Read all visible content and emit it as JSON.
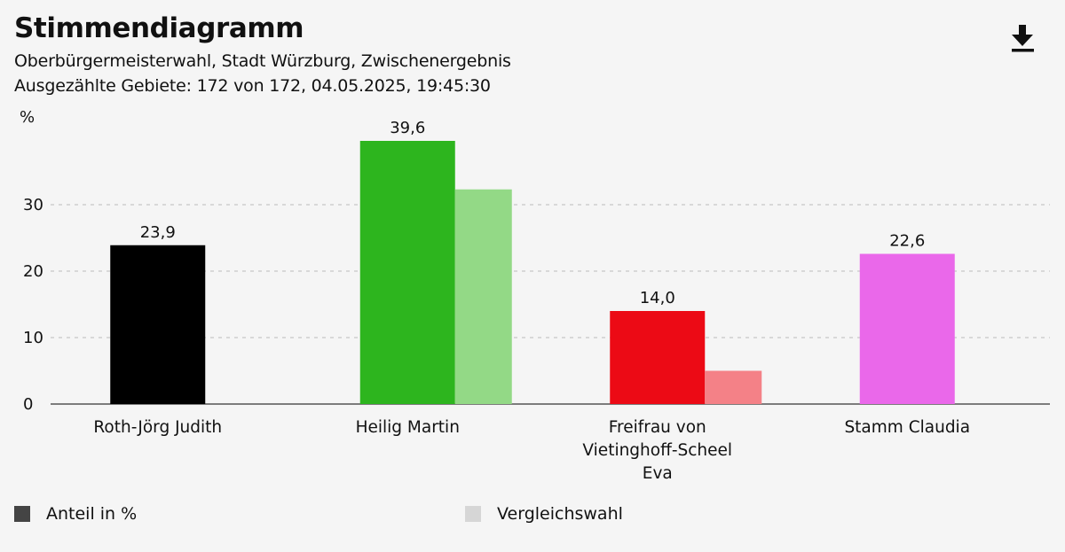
{
  "header": {
    "title": "Stimmendiagramm",
    "subtitle": "Oberbürgermeisterwahl, Stadt Würzburg, Zwischenergebnis",
    "status": "Ausgezählte Gebiete: 172 von 172, 04.05.2025, 19:45:30",
    "download_icon": "download-icon"
  },
  "legend": {
    "items": [
      {
        "label": "Anteil in %",
        "color": "#444444"
      },
      {
        "label": "Vergleichswahl",
        "color": "#d6d6d6"
      }
    ]
  },
  "chart_data": {
    "type": "bar",
    "ylabel": "%",
    "ylim": [
      0,
      42
    ],
    "yticks": [
      0,
      10,
      20,
      30
    ],
    "grid": true,
    "legend_position": "bottom",
    "categories": [
      [
        "Roth-Jörg Judith"
      ],
      [
        "Heilig Martin"
      ],
      [
        "Freifrau von",
        "Vietinghoff-Scheel",
        "Eva"
      ],
      [
        "Stamm Claudia"
      ]
    ],
    "series": [
      {
        "name": "Anteil in %",
        "values": [
          23.9,
          39.6,
          14.0,
          22.6
        ],
        "labels": [
          "23,9",
          "39,6",
          "14,0",
          "22,6"
        ],
        "colors": [
          "#000000",
          "#2db51e",
          "#ec0a15",
          "#ea68ea"
        ]
      },
      {
        "name": "Vergleichswahl",
        "values": [
          null,
          32.3,
          5.0,
          null
        ],
        "colors": [
          null,
          "#93d986",
          "#f48187",
          null
        ]
      }
    ]
  }
}
